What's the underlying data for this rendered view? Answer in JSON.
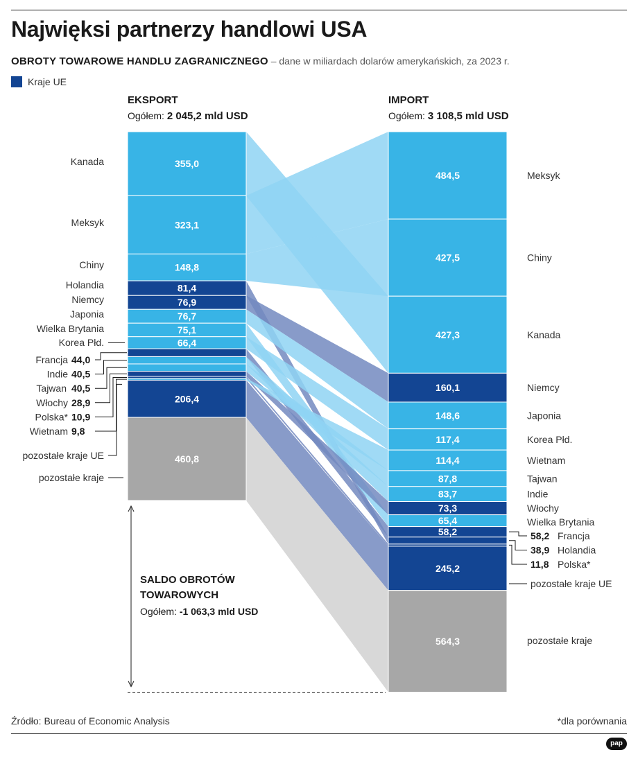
{
  "title": "Najwięksi partnerzy handlowi USA",
  "subtitle_lead": "OBROTY TOWAROWE HANDLU ZAGRANICZNEGO",
  "subtitle_rest": " – dane w miliardach dolarów amerykańskich, za 2023 r.",
  "legend_label": "Kraje UE",
  "colors": {
    "eu": "#134593",
    "non_eu": "#38b4e6",
    "rest": "#a7a7a7",
    "flow_non_eu": "#8fd4f3",
    "flow_eu": "#7389bf",
    "flow_rest": "#d4d4d4"
  },
  "export": {
    "heading": "EKSPORT",
    "total_prefix": "Ogółem: ",
    "total_value": "2 045,2 mld USD"
  },
  "import": {
    "heading": "IMPORT",
    "total_prefix": "Ogółem: ",
    "total_value": "3 108,5 mld USD"
  },
  "saldo": {
    "heading": "SALDO OBROTÓW TOWAROWYCH",
    "total_prefix": "Ogółem: ",
    "total_value": "-1 063,3 mld USD"
  },
  "source": "Źródło: Bureau of Economic Analysis",
  "footnote": "*dla porównania",
  "logo": "pap",
  "chart_data": {
    "type": "bar",
    "unit": "mld USD",
    "export": [
      {
        "country": "Kanada",
        "label": "Kanada",
        "value": 355.0,
        "value_label": "355,0",
        "group": "non_eu"
      },
      {
        "country": "Meksyk",
        "label": "Meksyk",
        "value": 323.1,
        "value_label": "323,1",
        "group": "non_eu"
      },
      {
        "country": "Chiny",
        "label": "Chiny",
        "value": 148.8,
        "value_label": "148,8",
        "group": "non_eu"
      },
      {
        "country": "Holandia",
        "label": "Holandia",
        "value": 81.4,
        "value_label": "81,4",
        "group": "eu"
      },
      {
        "country": "Niemcy",
        "label": "Niemcy",
        "value": 76.9,
        "value_label": "76,9",
        "group": "eu"
      },
      {
        "country": "Japonia",
        "label": "Japonia",
        "value": 76.7,
        "value_label": "76,7",
        "group": "non_eu"
      },
      {
        "country": "Wielka Brytania",
        "label": "Wielka Brytania",
        "value": 75.1,
        "value_label": "75,1",
        "group": "non_eu"
      },
      {
        "country": "Korea Płd.",
        "label": "Korea Płd.",
        "value": 66.4,
        "value_label": "66,4",
        "group": "non_eu"
      },
      {
        "country": "Francja",
        "label": "Francja",
        "value": 44.0,
        "value_label": "44,0",
        "group": "eu"
      },
      {
        "country": "Indie",
        "label": "Indie",
        "value": 40.5,
        "value_label": "40,5",
        "group": "non_eu"
      },
      {
        "country": "Tajwan",
        "label": "Tajwan",
        "value": 40.5,
        "value_label": "40,5",
        "group": "non_eu"
      },
      {
        "country": "Włochy",
        "label": "Włochy",
        "value": 28.9,
        "value_label": "28,9",
        "group": "eu"
      },
      {
        "country": "Polska",
        "label": "Polska*",
        "value": 10.9,
        "value_label": "10,9",
        "group": "eu"
      },
      {
        "country": "Wietnam",
        "label": "Wietnam",
        "value": 9.8,
        "value_label": "9,8",
        "group": "non_eu"
      },
      {
        "country": "pozostałe kraje UE",
        "label": "pozostałe kraje UE",
        "value": 206.4,
        "value_label": "206,4",
        "group": "eu"
      },
      {
        "country": "pozostałe kraje",
        "label": "pozostałe kraje",
        "value": 460.8,
        "value_label": "460,8",
        "group": "rest"
      }
    ],
    "import": [
      {
        "country": "Meksyk",
        "label": "Meksyk",
        "value": 484.5,
        "value_label": "484,5",
        "group": "non_eu"
      },
      {
        "country": "Chiny",
        "label": "Chiny",
        "value": 427.5,
        "value_label": "427,5",
        "group": "non_eu"
      },
      {
        "country": "Kanada",
        "label": "Kanada",
        "value": 427.3,
        "value_label": "427,3",
        "group": "non_eu"
      },
      {
        "country": "Niemcy",
        "label": "Niemcy",
        "value": 160.1,
        "value_label": "160,1",
        "group": "eu"
      },
      {
        "country": "Japonia",
        "label": "Japonia",
        "value": 148.6,
        "value_label": "148,6",
        "group": "non_eu"
      },
      {
        "country": "Korea Płd.",
        "label": "Korea Płd.",
        "value": 117.4,
        "value_label": "117,4",
        "group": "non_eu"
      },
      {
        "country": "Wietnam",
        "label": "Wietnam",
        "value": 114.4,
        "value_label": "114,4",
        "group": "non_eu"
      },
      {
        "country": "Tajwan",
        "label": "Tajwan",
        "value": 87.8,
        "value_label": "87,8",
        "group": "non_eu"
      },
      {
        "country": "Indie",
        "label": "Indie",
        "value": 83.7,
        "value_label": "83,7",
        "group": "non_eu"
      },
      {
        "country": "Włochy",
        "label": "Włochy",
        "value": 73.3,
        "value_label": "73,3",
        "group": "eu"
      },
      {
        "country": "Wielka Brytania",
        "label": "Wielka Brytania",
        "value": 65.4,
        "value_label": "65,4",
        "group": "non_eu"
      },
      {
        "country": "Francja",
        "label": "Francja",
        "value": 58.2,
        "value_label": "58,2",
        "group": "eu"
      },
      {
        "country": "Holandia",
        "label": "Holandia",
        "value": 38.9,
        "value_label": "38,9",
        "group": "eu"
      },
      {
        "country": "Polska",
        "label": "Polska*",
        "value": 11.8,
        "value_label": "11,8",
        "group": "eu"
      },
      {
        "country": "pozostałe kraje UE",
        "label": "pozostałe kraje UE",
        "value": 245.2,
        "value_label": "245,2",
        "group": "eu"
      },
      {
        "country": "pozostałe kraje",
        "label": "pozostałe kraje",
        "value": 564.3,
        "value_label": "564,3",
        "group": "rest"
      }
    ]
  }
}
